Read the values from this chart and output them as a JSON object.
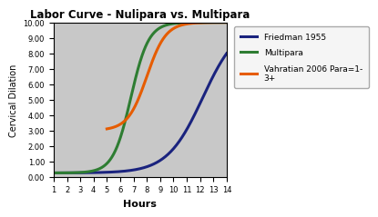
{
  "title": "Labor Curve - Nulipara vs. Multipara",
  "xlabel": "Hours",
  "ylabel": "Cervical Dilation",
  "xlim": [
    1,
    14
  ],
  "ylim": [
    0,
    10
  ],
  "xticks": [
    1,
    2,
    3,
    4,
    5,
    6,
    7,
    8,
    9,
    10,
    11,
    12,
    13,
    14
  ],
  "yticks": [
    0.0,
    1.0,
    2.0,
    3.0,
    4.0,
    5.0,
    6.0,
    7.0,
    8.0,
    9.0,
    10.0
  ],
  "background_color": "#c8c8c8",
  "figure_background": "#ffffff",
  "series": {
    "friedman": {
      "label": "Friedman 1955",
      "color": "#1a237e",
      "linewidth": 2.2
    },
    "multipara": {
      "label": "Multipara",
      "color": "#2e7d32",
      "linewidth": 2.2
    },
    "vahratian": {
      "label": "Vahratian 2006 Para=1-\n3+",
      "color": "#e65c00",
      "linewidth": 2.2
    }
  },
  "friedman_params": {
    "midpoint": 12.2,
    "steepness": 0.75,
    "ymin": 0.25,
    "ymax": 10.0,
    "xstart": 1,
    "xend": 14
  },
  "multipara_params": {
    "midpoint": 6.8,
    "steepness": 1.5,
    "ymin": 0.25,
    "ymax": 10.0,
    "xstart": 1,
    "xend": 14
  },
  "vahratian_params": {
    "midpoint": 8.0,
    "steepness": 1.4,
    "ymin": 3.0,
    "ymax": 10.0,
    "xstart": 5.0,
    "xend": 14
  }
}
